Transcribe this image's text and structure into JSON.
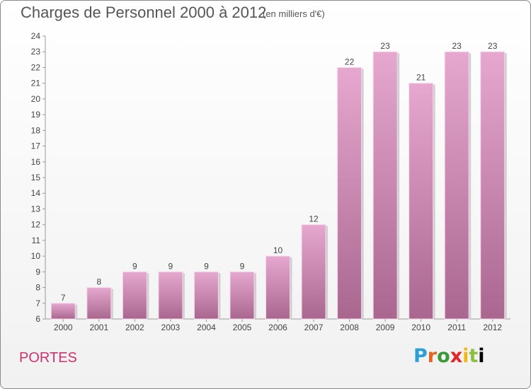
{
  "header": {
    "title": "Charges de Personnel 2000 à 2012",
    "subtitle": "(en milliers d'€)"
  },
  "footer": {
    "commune": "PORTES",
    "logo_text": "Proxiti",
    "logo_letters": [
      "P",
      "r",
      "o",
      "x",
      "i",
      "t",
      "i"
    ]
  },
  "colors": {
    "bar_top": "#e6a8cf",
    "bar_bottom": "#a9678f",
    "commune_text": "#d0336a"
  },
  "chart_data": {
    "type": "bar",
    "title": "Charges de Personnel 2000 à 2012",
    "subtitle": "(en milliers d'€)",
    "categories": [
      "2000",
      "2001",
      "2002",
      "2003",
      "2004",
      "2005",
      "2006",
      "2007",
      "2008",
      "2009",
      "2010",
      "2011",
      "2012"
    ],
    "values": [
      7,
      8,
      9,
      9,
      9,
      9,
      10,
      12,
      22,
      23,
      21,
      23,
      23
    ],
    "ylim": [
      6,
      24
    ],
    "yticks": [
      6,
      7,
      8,
      9,
      10,
      11,
      12,
      13,
      14,
      15,
      16,
      17,
      18,
      19,
      20,
      21,
      22,
      23,
      24
    ],
    "grid": false,
    "legend": "none"
  }
}
